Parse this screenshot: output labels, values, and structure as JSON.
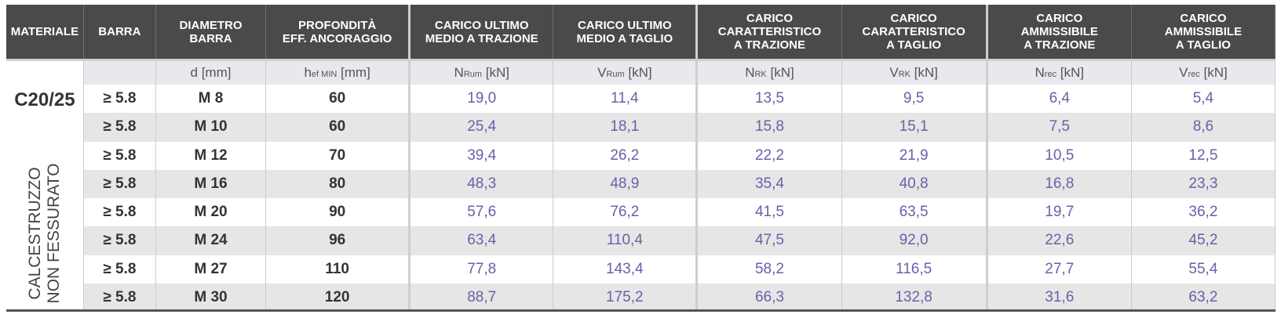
{
  "headers": [
    {
      "label": "MATERIALE"
    },
    {
      "label": "BARRA"
    },
    {
      "label": "DIAMETRO\nBARRA"
    },
    {
      "label": "PROFONDITÀ\nEFF. ANCORAGGIO"
    },
    {
      "label": "CARICO ULTIMO\nMEDIO A TRAZIONE"
    },
    {
      "label": "CARICO ULTIMO\nMEDIO A TAGLIO"
    },
    {
      "label": "CARICO\nCARATTERISTICO\nA TRAZIONE"
    },
    {
      "label": "CARICO\nCARATTERISTICO\nA TAGLIO"
    },
    {
      "label": "CARICO\nAMMISSIBILE\nA TRAZIONE"
    },
    {
      "label": "CARICO\nAMMISSIBILE\nA TAGLIO"
    }
  ],
  "units": [
    {
      "main": "d",
      "sub": "",
      "unit": " [mm]"
    },
    {
      "main": "h",
      "sub": "ef MIN",
      "unit": " [mm]"
    },
    {
      "main": "N",
      "sub": "Rum",
      "unit": " [kN]"
    },
    {
      "main": "V",
      "sub": "Rum",
      "unit": " [kN]"
    },
    {
      "main": "N",
      "sub": "RK",
      "unit": " [kN]"
    },
    {
      "main": "V",
      "sub": "RK",
      "unit": " [kN]"
    },
    {
      "main": "N",
      "sub": "rec",
      "unit": " [kN]"
    },
    {
      "main": "V",
      "sub": "rec",
      "unit": " [kN]"
    }
  ],
  "material": {
    "grade": "C20/25",
    "line1": "CALCESTRUZZO",
    "line2": "NON FESSURATO"
  },
  "rows": [
    {
      "bar": "≥ 5.8",
      "diameter": "M 8",
      "hef": "60",
      "n_rum": "19,0",
      "v_rum": "11,4",
      "n_rk": "13,5",
      "v_rk": "9,5",
      "n_rec": "6,4",
      "v_rec": "5,4"
    },
    {
      "bar": "≥ 5.8",
      "diameter": "M 10",
      "hef": "60",
      "n_rum": "25,4",
      "v_rum": "18,1",
      "n_rk": "15,8",
      "v_rk": "15,1",
      "n_rec": "7,5",
      "v_rec": "8,6"
    },
    {
      "bar": "≥ 5.8",
      "diameter": "M 12",
      "hef": "70",
      "n_rum": "39,4",
      "v_rum": "26,2",
      "n_rk": "22,2",
      "v_rk": "21,9",
      "n_rec": "10,5",
      "v_rec": "12,5"
    },
    {
      "bar": "≥ 5.8",
      "diameter": "M 16",
      "hef": "80",
      "n_rum": "48,3",
      "v_rum": "48,9",
      "n_rk": "35,4",
      "v_rk": "40,8",
      "n_rec": "16,8",
      "v_rec": "23,3"
    },
    {
      "bar": "≥ 5.8",
      "diameter": "M 20",
      "hef": "90",
      "n_rum": "57,6",
      "v_rum": "76,2",
      "n_rk": "41,5",
      "v_rk": "63,5",
      "n_rec": "19,7",
      "v_rec": "36,2"
    },
    {
      "bar": "≥ 5.8",
      "diameter": "M 24",
      "hef": "96",
      "n_rum": "63,4",
      "v_rum": "110,4",
      "n_rk": "47,5",
      "v_rk": "92,0",
      "n_rec": "22,6",
      "v_rec": "45,2"
    },
    {
      "bar": "≥ 5.8",
      "diameter": "M 27",
      "hef": "110",
      "n_rum": "77,8",
      "v_rum": "143,4",
      "n_rk": "58,2",
      "v_rk": "116,5",
      "n_rec": "27,7",
      "v_rec": "55,4"
    },
    {
      "bar": "≥ 5.8",
      "diameter": "M 30",
      "hef": "120",
      "n_rum": "88,7",
      "v_rum": "175,2",
      "n_rk": "66,3",
      "v_rk": "132,8",
      "n_rec": "31,6",
      "v_rec": "63,2"
    }
  ]
}
